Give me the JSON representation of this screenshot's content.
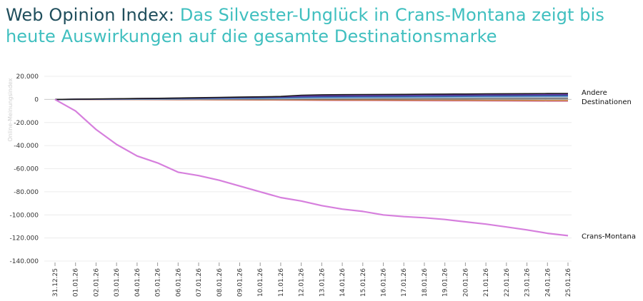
{
  "header": {
    "title_prefix": "Web Opinion Index:",
    "title_main": "Das Silvester-Unglück in Crans-Montana zeigt bis heute Auswirkungen auf die gesamte Destinationsmarke"
  },
  "colors": {
    "title_prefix": "#1f4e5c",
    "title_main": "#3fbfbf",
    "crans_montana": "#d67fdd",
    "others": [
      "#1a1a1a",
      "#6d3ab0",
      "#2a4a8a",
      "#4a7dc4",
      "#7fb3e0",
      "#9e9e9e",
      "#6b6b6b",
      "#c77b3a",
      "#d47fb8"
    ]
  },
  "chart_data": {
    "type": "line",
    "title": "Web Opinion Index: Das Silvester-Unglück in Crans-Montana zeigt bis heute Auswirkungen auf die gesamte Destinationsmarke",
    "xlabel": "",
    "ylabel": "Online-Meinungsindex",
    "ylim": [
      -140000,
      20000
    ],
    "yticks": [
      20000,
      0,
      -20000,
      -40000,
      -60000,
      -80000,
      -100000,
      -120000,
      -140000
    ],
    "ytick_labels": [
      "20.000",
      "0",
      "-20.000",
      "-40.000",
      "-60.000",
      "-80.000",
      "-100.000",
      "-120.000",
      "-140.000"
    ],
    "grid": true,
    "legend": "none",
    "categories": [
      "31.12.25",
      "01.01.26",
      "02.01.26",
      "03.01.26",
      "04.01.26",
      "05.01.26",
      "06.01.26",
      "07.01.26",
      "08.01.26",
      "09.01.26",
      "10.01.26",
      "11.01.26",
      "12.01.26",
      "13.01.26",
      "14.01.26",
      "15.01.26",
      "16.01.26",
      "17.01.26",
      "18.01.26",
      "19.01.26",
      "20.01.26",
      "21.01.26",
      "22.01.26",
      "23.01.26",
      "24.01.26",
      "25.01.26"
    ],
    "series": [
      {
        "name": "Crans-Montana",
        "color": "#d67fdd",
        "values": [
          0,
          -10000,
          -26000,
          -39000,
          -49000,
          -55000,
          -63000,
          -66000,
          -70000,
          -75000,
          -80000,
          -85000,
          -88000,
          -92000,
          -95000,
          -97000,
          -100000,
          -101500,
          -102500,
          -104000,
          -106000,
          -108000,
          -110500,
          -113000,
          -116000,
          -118000
        ]
      },
      {
        "name": "Andere Destinationen",
        "color": "#1a1a1a",
        "values": [
          0,
          200,
          400,
          600,
          800,
          1000,
          1200,
          1500,
          1800,
          2000,
          2300,
          2600,
          3600,
          4000,
          4100,
          4200,
          4300,
          4400,
          4500,
          4600,
          4700,
          4800,
          4900,
          5000,
          5100,
          5200
        ]
      },
      {
        "color": "#6d3ab0",
        "values": [
          0,
          150,
          300,
          500,
          700,
          900,
          1100,
          1300,
          1600,
          1800,
          2000,
          2300,
          2900,
          3200,
          3300,
          3400,
          3500,
          3600,
          3700,
          3800,
          3900,
          4000,
          4100,
          4200,
          4300,
          4400
        ]
      },
      {
        "color": "#2a4a8a",
        "values": [
          0,
          100,
          250,
          400,
          550,
          700,
          850,
          1000,
          1200,
          1400,
          1600,
          1800,
          2200,
          2500,
          2600,
          2700,
          2800,
          2900,
          3000,
          3100,
          3200,
          3300,
          3400,
          3500,
          3550,
          3600
        ]
      },
      {
        "color": "#4a7dc4",
        "values": [
          0,
          80,
          180,
          300,
          420,
          540,
          660,
          800,
          950,
          1100,
          1250,
          1400,
          1700,
          1900,
          2000,
          2100,
          2200,
          2300,
          2400,
          2500,
          2600,
          2700,
          2800,
          2900,
          2950,
          3000
        ]
      },
      {
        "color": "#7fb3e0",
        "values": [
          0,
          60,
          140,
          220,
          300,
          380,
          460,
          560,
          660,
          760,
          860,
          960,
          1200,
          1400,
          1500,
          1600,
          1700,
          1800,
          1900,
          2000,
          2100,
          2200,
          2300,
          2350,
          2400,
          2450
        ]
      },
      {
        "color": "#9e9e9e",
        "values": [
          0,
          40,
          90,
          140,
          190,
          240,
          290,
          340,
          400,
          460,
          520,
          580,
          700,
          800,
          850,
          900,
          950,
          1000,
          1050,
          1100,
          1150,
          1200,
          1250,
          1300,
          1350,
          1400
        ]
      },
      {
        "color": "#6b6b6b",
        "values": [
          0,
          20,
          40,
          60,
          80,
          100,
          120,
          140,
          160,
          180,
          200,
          220,
          260,
          300,
          320,
          340,
          360,
          380,
          400,
          420,
          440,
          460,
          480,
          500,
          520,
          540
        ]
      },
      {
        "color": "#c77b3a",
        "values": [
          0,
          -20,
          -50,
          -80,
          -110,
          -140,
          -170,
          -200,
          -240,
          -280,
          -320,
          -360,
          -420,
          -480,
          -520,
          -560,
          -600,
          -640,
          -680,
          -720,
          -760,
          -800,
          -840,
          -880,
          -920,
          -960
        ]
      },
      {
        "color": "#d47fb8",
        "values": [
          0,
          -40,
          -90,
          -140,
          -190,
          -240,
          -300,
          -360,
          -430,
          -500,
          -570,
          -640,
          -760,
          -880,
          -940,
          -1000,
          -1060,
          -1120,
          -1180,
          -1240,
          -1300,
          -1360,
          -1420,
          -1480,
          -1540,
          -1600
        ]
      }
    ]
  }
}
